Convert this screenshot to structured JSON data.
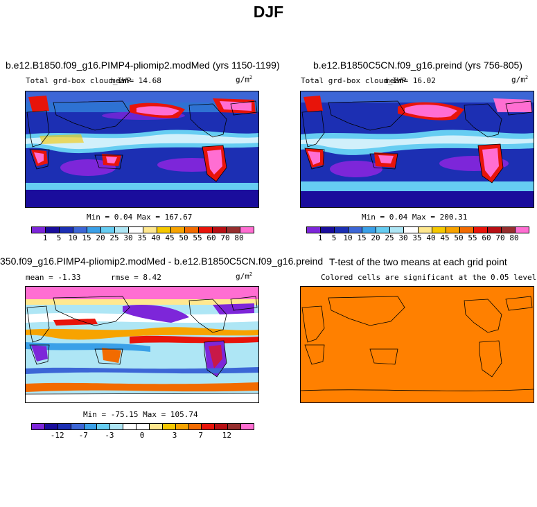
{
  "figure": {
    "title": "DJF"
  },
  "panels": [
    {
      "title": "b.e12.B1850.f09_g16.PIMP4-pliomip2.modMed (yrs 1150-1199)",
      "left_label": "Total grd-box cloud_IWP",
      "mean_text": "mean=  14.68",
      "units": "g/m",
      "units_exp": "2",
      "minmax": "Min =   0.04  Max = 167.67"
    },
    {
      "title": "b.e12.B1850C5CN.f09_g16.preind (yrs 756-805)",
      "left_label": "Total grd-box cloud_IWP",
      "mean_text": "mean=  16.02",
      "units": "g/m",
      "units_exp": "2",
      "minmax": "Min =   0.04  Max = 200.31"
    },
    {
      "title": "350.f09_g16.PIMP4-pliomip2.modMed - b.e12.B1850C5CN.f09_g16.preind",
      "left_label": "mean =  -1.33",
      "rmse_text": "rmse =   8.42",
      "units": "g/m",
      "units_exp": "2",
      "minmax": "Min = -75.15  Max = 105.74"
    },
    {
      "title": "T-test of the two means at each grid point",
      "subtitle": "Colored cells are significant at the 0.05 level"
    }
  ],
  "colorbars": {
    "field": {
      "colors": [
        "#7d26d9",
        "#1a0d9c",
        "#1c2fb3",
        "#3c66d6",
        "#3aa0e8",
        "#66cdf2",
        "#aee6f5",
        "#ffffff",
        "#ffe88f",
        "#f5c800",
        "#f7a300",
        "#f26b00",
        "#e8140a",
        "#b80f14",
        "#962e2e",
        "#ff6ed2"
      ],
      "labels": [
        "1",
        "5",
        "10",
        "15",
        "20",
        "25",
        "30",
        "35",
        "40",
        "45",
        "50",
        "55",
        "60",
        "70",
        "80"
      ]
    },
    "diff": {
      "colors": [
        "#7d26d9",
        "#1a0d9c",
        "#1c2fb3",
        "#3c66d6",
        "#3aa0e8",
        "#66cdf2",
        "#aee6f5",
        "#ffffff",
        "#ffffff",
        "#ffe88f",
        "#f5c800",
        "#f7a300",
        "#f26b00",
        "#e8140a",
        "#b80f14",
        "#962e2e",
        "#ff6ed2"
      ],
      "labels": [
        "-12",
        "-7",
        "-3",
        "0",
        "3",
        "7",
        "12"
      ]
    }
  },
  "chart_data": [
    {
      "type": "heatmap",
      "title": "b.e12.B1850.f09_g16.PIMP4-pliomip2.modMed (yrs 1150-1199)",
      "variable": "Total grd-box cloud_IWP",
      "units": "g/m2",
      "mean": 14.68,
      "min": 0.04,
      "max": 167.67,
      "contour_levels": [
        1,
        5,
        10,
        15,
        20,
        25,
        30,
        35,
        40,
        45,
        50,
        55,
        60,
        70,
        80
      ]
    },
    {
      "type": "heatmap",
      "title": "b.e12.B1850C5CN.f09_g16.preind (yrs 756-805)",
      "variable": "Total grd-box cloud_IWP",
      "units": "g/m2",
      "mean": 16.02,
      "min": 0.04,
      "max": 200.31,
      "contour_levels": [
        1,
        5,
        10,
        15,
        20,
        25,
        30,
        35,
        40,
        45,
        50,
        55,
        60,
        70,
        80
      ]
    },
    {
      "type": "heatmap",
      "title": "350.f09_g16.PIMP4-pliomip2.modMed - b.e12.B1850C5CN.f09_g16.preind",
      "units": "g/m2",
      "mean": -1.33,
      "rmse": 8.42,
      "min": -75.15,
      "max": 105.74,
      "colorbar_labels": [
        -12,
        -7,
        -3,
        0,
        3,
        7,
        12
      ]
    },
    {
      "type": "heatmap",
      "title": "T-test of the two means at each grid point",
      "note": "Colored cells are significant at the 0.05 level",
      "fill_color": "#ff8000"
    }
  ]
}
